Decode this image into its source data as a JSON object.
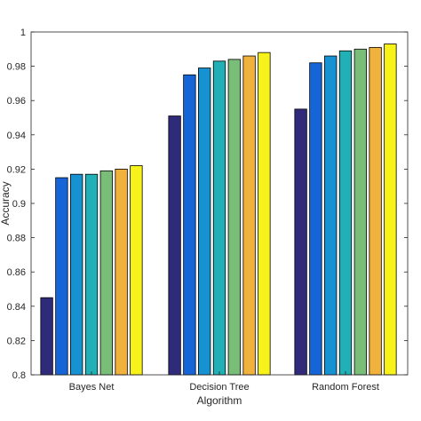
{
  "chart_data": {
    "type": "bar",
    "xlabel": "Algorithm",
    "ylabel": "Accuracy",
    "ylim": [
      0.8,
      1.0
    ],
    "yticks": [
      0.8,
      0.82,
      0.84,
      0.86,
      0.88,
      0.9,
      0.92,
      0.94,
      0.96,
      0.98,
      1
    ],
    "ytick_labels": [
      "0.8",
      "0.82",
      "0.84",
      "0.86",
      "0.88",
      "0.9",
      "0.92",
      "0.94",
      "0.96",
      "0.98",
      "1"
    ],
    "categories": [
      "Bayes Net",
      "Decision Tree",
      "Random Forest"
    ],
    "grid": false,
    "legend": "none",
    "series": [
      {
        "color": "#2f2a7a",
        "values": [
          0.845,
          0.951,
          0.955
        ]
      },
      {
        "color": "#1565d8",
        "values": [
          0.915,
          0.975,
          0.982
        ]
      },
      {
        "color": "#1691d2",
        "values": [
          0.917,
          0.979,
          0.986
        ]
      },
      {
        "color": "#20b0b6",
        "values": [
          0.917,
          0.983,
          0.989
        ]
      },
      {
        "color": "#79bd78",
        "values": [
          0.919,
          0.984,
          0.99
        ]
      },
      {
        "color": "#f0b23c",
        "values": [
          0.92,
          0.986,
          0.991
        ]
      },
      {
        "color": "#f7f21a",
        "values": [
          0.922,
          0.988,
          0.993
        ]
      }
    ]
  }
}
